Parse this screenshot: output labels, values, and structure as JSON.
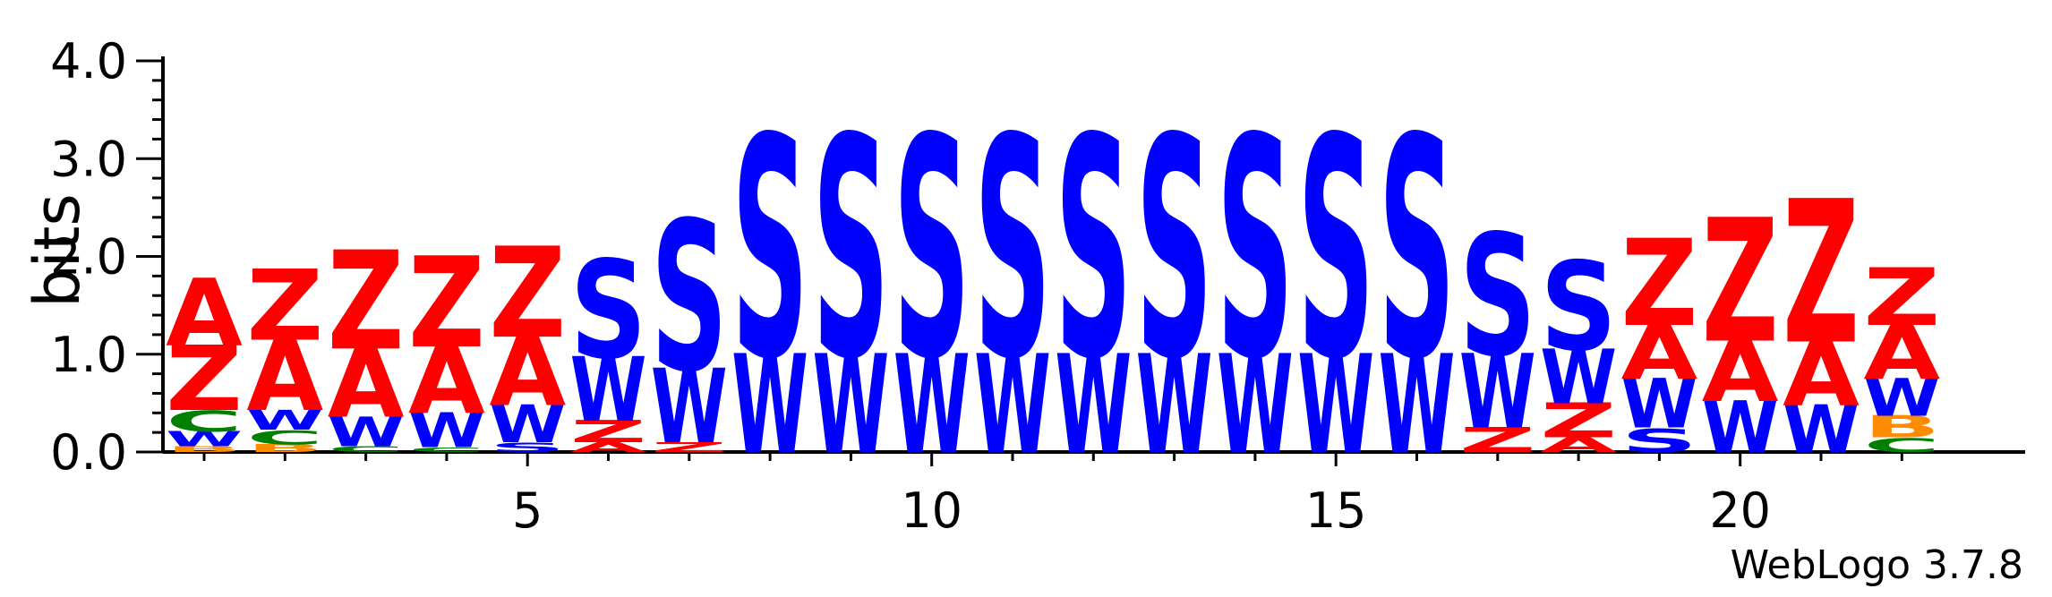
{
  "chart_data": {
    "type": "sequence-logo",
    "ylabel": "bits",
    "ylim": [
      0,
      4
    ],
    "y_ticks": [
      "0.0",
      "1.0",
      "2.0",
      "3.0",
      "4.0"
    ],
    "x_range": [
      1,
      22
    ],
    "x_ticks": [
      "5",
      "10",
      "15",
      "20"
    ],
    "colors": {
      "A": "#ff0000",
      "Z": "#ff0000",
      "S": "#0000ff",
      "W": "#0000ff",
      "C": "#008000",
      "B": "#ff8c00"
    },
    "positions": [
      {
        "pos": 1,
        "stack": [
          {
            "l": "B",
            "h": 0.06
          },
          {
            "l": "W",
            "h": 0.15
          },
          {
            "l": "C",
            "h": 0.22
          },
          {
            "l": "Z",
            "h": 0.66
          },
          {
            "l": "A",
            "h": 0.68
          }
        ]
      },
      {
        "pos": 2,
        "stack": [
          {
            "l": "B",
            "h": 0.08
          },
          {
            "l": "C",
            "h": 0.15
          },
          {
            "l": "W",
            "h": 0.2
          },
          {
            "l": "A",
            "h": 0.72
          },
          {
            "l": "Z",
            "h": 0.72
          }
        ]
      },
      {
        "pos": 3,
        "stack": [
          {
            "l": "C",
            "h": 0.06
          },
          {
            "l": "W",
            "h": 0.3
          },
          {
            "l": "A",
            "h": 0.7
          },
          {
            "l": "Z",
            "h": 1.0
          }
        ]
      },
      {
        "pos": 4,
        "stack": [
          {
            "l": "C",
            "h": 0.05
          },
          {
            "l": "W",
            "h": 0.35
          },
          {
            "l": "A",
            "h": 0.68
          },
          {
            "l": "Z",
            "h": 0.92
          }
        ]
      },
      {
        "pos": 5,
        "stack": [
          {
            "l": "S",
            "h": 0.1
          },
          {
            "l": "W",
            "h": 0.38
          },
          {
            "l": "A",
            "h": 0.7
          },
          {
            "l": "Z",
            "h": 0.92
          }
        ]
      },
      {
        "pos": 6,
        "stack": [
          {
            "l": "A",
            "h": 0.1
          },
          {
            "l": "Z",
            "h": 0.22
          },
          {
            "l": "W",
            "h": 0.65
          },
          {
            "l": "S",
            "h": 1.05
          }
        ]
      },
      {
        "pos": 7,
        "stack": [
          {
            "l": "Z",
            "h": 0.1
          },
          {
            "l": "W",
            "h": 0.75
          },
          {
            "l": "S",
            "h": 1.6
          }
        ]
      },
      {
        "pos": 8,
        "stack": [
          {
            "l": "W",
            "h": 1.0
          },
          {
            "l": "S",
            "h": 2.35
          }
        ]
      },
      {
        "pos": 9,
        "stack": [
          {
            "l": "W",
            "h": 1.0
          },
          {
            "l": "S",
            "h": 2.35
          }
        ]
      },
      {
        "pos": 10,
        "stack": [
          {
            "l": "W",
            "h": 1.0
          },
          {
            "l": "S",
            "h": 2.35
          }
        ]
      },
      {
        "pos": 11,
        "stack": [
          {
            "l": "W",
            "h": 1.0
          },
          {
            "l": "S",
            "h": 2.35
          }
        ]
      },
      {
        "pos": 12,
        "stack": [
          {
            "l": "W",
            "h": 1.0
          },
          {
            "l": "S",
            "h": 2.35
          }
        ]
      },
      {
        "pos": 13,
        "stack": [
          {
            "l": "W",
            "h": 1.0
          },
          {
            "l": "S",
            "h": 2.35
          }
        ]
      },
      {
        "pos": 14,
        "stack": [
          {
            "l": "W",
            "h": 1.0
          },
          {
            "l": "S",
            "h": 2.35
          }
        ]
      },
      {
        "pos": 15,
        "stack": [
          {
            "l": "W",
            "h": 1.0
          },
          {
            "l": "S",
            "h": 2.35
          }
        ]
      },
      {
        "pos": 16,
        "stack": [
          {
            "l": "W",
            "h": 1.0
          },
          {
            "l": "S",
            "h": 2.35
          }
        ]
      },
      {
        "pos": 17,
        "stack": [
          {
            "l": "Z",
            "h": 0.25
          },
          {
            "l": "W",
            "h": 0.75
          },
          {
            "l": "S",
            "h": 1.3
          }
        ]
      },
      {
        "pos": 18,
        "stack": [
          {
            "l": "A",
            "h": 0.15
          },
          {
            "l": "Z",
            "h": 0.35
          },
          {
            "l": "W",
            "h": 0.55
          },
          {
            "l": "S",
            "h": 0.95
          }
        ]
      },
      {
        "pos": 19,
        "stack": [
          {
            "l": "S",
            "h": 0.25
          },
          {
            "l": "W",
            "h": 0.5
          },
          {
            "l": "A",
            "h": 0.55
          },
          {
            "l": "Z",
            "h": 0.88
          }
        ]
      },
      {
        "pos": 20,
        "stack": [
          {
            "l": "W",
            "h": 0.52
          },
          {
            "l": "A",
            "h": 0.62
          },
          {
            "l": "Z",
            "h": 1.25
          }
        ]
      },
      {
        "pos": 21,
        "stack": [
          {
            "l": "W",
            "h": 0.48
          },
          {
            "l": "A",
            "h": 0.65
          },
          {
            "l": "Z",
            "h": 1.45
          }
        ]
      },
      {
        "pos": 22,
        "stack": [
          {
            "l": "C",
            "h": 0.15
          },
          {
            "l": "B",
            "h": 0.22
          },
          {
            "l": "W",
            "h": 0.38
          },
          {
            "l": "A",
            "h": 0.55
          },
          {
            "l": "Z",
            "h": 0.58
          }
        ]
      }
    ]
  },
  "footer": "WebLogo 3.7.8"
}
